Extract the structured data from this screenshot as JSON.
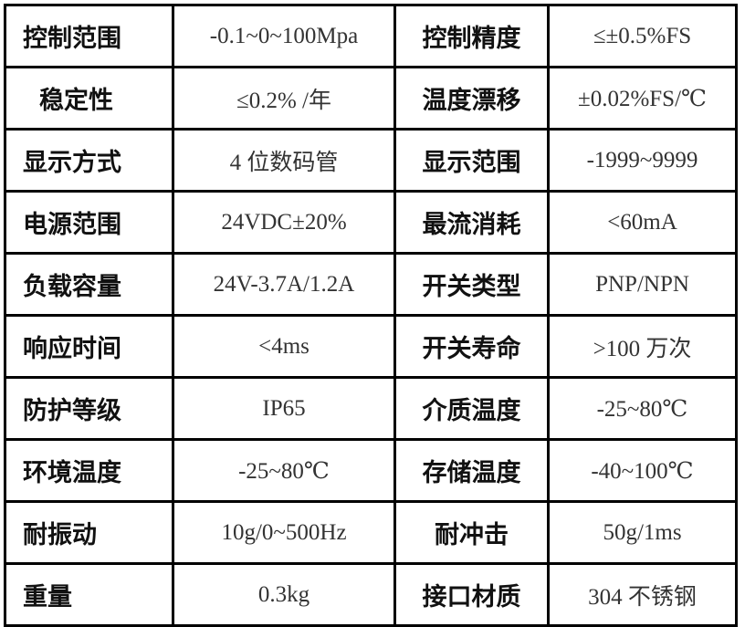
{
  "rows": [
    {
      "label1": "控制范围",
      "value1": "-0.1~0~100Mpa",
      "label2": "控制精度",
      "value2": "≤±0.5%FS"
    },
    {
      "label1": "稳定性",
      "value1": "≤0.2% /年",
      "label2": "温度漂移",
      "value2": "±0.02%FS/℃"
    },
    {
      "label1": "显示方式",
      "value1": "4 位数码管",
      "label2": "显示范围",
      "value2": "-1999~9999"
    },
    {
      "label1": "电源范围",
      "value1": "24VDC±20%",
      "label2": "最流消耗",
      "value2": "<60mA"
    },
    {
      "label1": "负载容量",
      "value1": "24V-3.7A/1.2A",
      "label2": "开关类型",
      "value2": "PNP/NPN"
    },
    {
      "label1": "响应时间",
      "value1": "<4ms",
      "label2": "开关寿命",
      "value2": ">100 万次"
    },
    {
      "label1": "防护等级",
      "value1": "IP65",
      "label2": "介质温度",
      "value2": "-25~80℃"
    },
    {
      "label1": "环境温度",
      "value1": "-25~80℃",
      "label2": "存储温度",
      "value2": "-40~100℃"
    },
    {
      "label1": "耐振动",
      "value1": "10g/0~500Hz",
      "label2": "耐冲击",
      "value2": "50g/1ms"
    },
    {
      "label1": "重量",
      "value1": "0.3kg",
      "label2": "接口材质",
      "value2": "304 不锈钢"
    }
  ]
}
